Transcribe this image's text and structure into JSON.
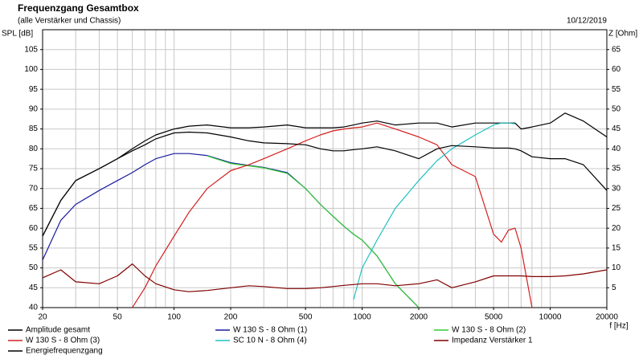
{
  "chart_data": {
    "type": "line",
    "title": "Frequenzgang Gesamtbox",
    "subtitle": "(alle Verstärker und Chassis)",
    "date": "10/12/2019",
    "y_label": "SPL [dB]",
    "y2_label": "Z [Ohm]",
    "x_label": "f [Hz]",
    "xscale": "log",
    "grid": true,
    "x": [
      20,
      25,
      30,
      40,
      50,
      60,
      70,
      80,
      100,
      120,
      150,
      200,
      250,
      300,
      400,
      500,
      600,
      700,
      800,
      900,
      1000,
      1200,
      1500,
      2000,
      2500,
      3000,
      4000,
      5000,
      5500,
      6000,
      6500,
      7000,
      8000,
      10000,
      12000,
      15000,
      20000
    ],
    "xlim": [
      20,
      20000
    ],
    "xticks": [
      20,
      50,
      100,
      200,
      500,
      1000,
      2000,
      5000,
      10000,
      20000
    ],
    "ylim": [
      40,
      110
    ],
    "yticks": [
      40,
      45,
      50,
      55,
      60,
      65,
      70,
      75,
      80,
      85,
      90,
      95,
      100,
      105
    ],
    "y2lim": [
      0,
      70
    ],
    "y2ticks": [
      5,
      10,
      15,
      20,
      25,
      30,
      35,
      40,
      45,
      50,
      55,
      60,
      65
    ],
    "series": [
      {
        "name": "Amplitude gesamt",
        "color": "#000000",
        "values": [
          58,
          67,
          72,
          75,
          77.5,
          80,
          82,
          83.5,
          85,
          85.7,
          86,
          85.3,
          85.3,
          85.5,
          86,
          85.3,
          85.3,
          85.3,
          85.5,
          86,
          86.5,
          87,
          86,
          86.5,
          86.5,
          85.5,
          86.5,
          86.5,
          86.5,
          86.5,
          86.5,
          85,
          85.5,
          86.5,
          89,
          87,
          83
        ]
      },
      {
        "name": "W 130 S - 8 Ohm (1)",
        "color": "#1a1aa0",
        "values": [
          52,
          62,
          66,
          69.5,
          72,
          74,
          76,
          77.5,
          78.8,
          78.8,
          78.3,
          76.5,
          75.8,
          75.3,
          74,
          70,
          66,
          63,
          60.5,
          58.5,
          57,
          53,
          46,
          40,
          null,
          null,
          null,
          null,
          null,
          null,
          null,
          null,
          null,
          null,
          null,
          null,
          null
        ]
      },
      {
        "name": "W 130 S - 8 Ohm (2)",
        "color": "#33cc33",
        "values": [
          null,
          null,
          null,
          null,
          null,
          null,
          null,
          null,
          null,
          null,
          78.2,
          76.3,
          75.7,
          75.2,
          73.8,
          70,
          66,
          63,
          60.5,
          58.5,
          57,
          53,
          46,
          40,
          null,
          null,
          null,
          null,
          null,
          null,
          null,
          null,
          null,
          null,
          null,
          null,
          null
        ]
      },
      {
        "name": "W 130 S - 8 Ohm (3)",
        "color": "#d42020",
        "values": [
          null,
          null,
          null,
          null,
          null,
          40,
          45,
          50.5,
          58,
          64,
          70,
          74.5,
          76,
          77.5,
          80,
          82,
          83.5,
          84.5,
          85,
          85.3,
          85.5,
          86.5,
          85,
          83,
          81,
          76,
          73,
          58.5,
          56.5,
          59.5,
          60,
          55,
          40,
          null,
          null,
          null,
          null
        ]
      },
      {
        "name": "SC 10 N - 8 Ohm (4)",
        "color": "#20c0c0",
        "values": [
          null,
          null,
          null,
          null,
          null,
          null,
          null,
          null,
          null,
          null,
          null,
          null,
          null,
          null,
          null,
          null,
          null,
          null,
          null,
          42,
          50,
          57,
          65,
          72,
          77,
          80,
          83.5,
          86,
          86.5,
          86.5,
          86.3,
          null,
          null,
          null,
          null,
          null,
          null
        ]
      },
      {
        "name": "Impedanz Verstärker 1",
        "color": "#800000",
        "axis": "y2",
        "values": [
          7.5,
          9.5,
          6.5,
          6,
          8,
          11,
          8,
          6,
          4.5,
          4,
          4.3,
          5,
          5.5,
          5.3,
          4.8,
          4.8,
          5,
          5.3,
          5.6,
          5.8,
          6,
          6,
          5.5,
          6,
          7,
          5,
          6.5,
          8,
          8,
          8,
          8,
          8,
          7.8,
          7.8,
          8,
          8.5,
          9.5
        ]
      },
      {
        "name": "Energiefrequenzgang",
        "color": "#000000",
        "values": [
          58,
          67,
          72,
          75,
          77.5,
          79.5,
          81,
          82.5,
          84,
          84.2,
          84,
          83,
          82,
          81.5,
          81.3,
          81,
          80,
          79.5,
          79.5,
          79.8,
          80,
          80.5,
          79.5,
          77.5,
          80,
          80.8,
          80.5,
          80.2,
          80.2,
          80.2,
          80,
          79.5,
          78,
          77.5,
          77.5,
          76,
          69.5
        ]
      }
    ]
  }
}
